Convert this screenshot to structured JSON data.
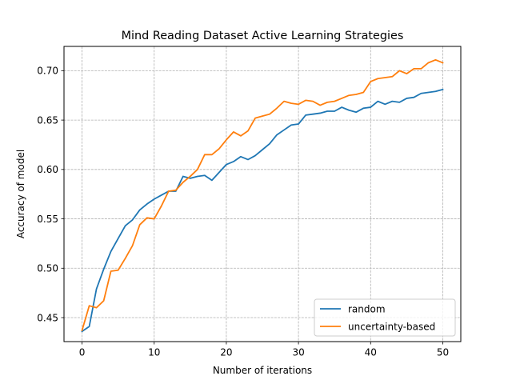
{
  "chart_data": {
    "type": "line",
    "title": "Mind Reading Dataset Active Learning Strategies",
    "xlabel": "Number of iterations",
    "ylabel": "Accuracy of model",
    "xlim": [
      -2.5,
      52.5
    ],
    "ylim": [
      0.4257,
      0.7246
    ],
    "xticks": [
      0,
      10,
      20,
      30,
      40,
      50
    ],
    "xtick_labels": [
      "0",
      "10",
      "20",
      "30",
      "40",
      "50"
    ],
    "yticks": [
      0.45,
      0.5,
      0.55,
      0.6,
      0.65,
      0.7
    ],
    "ytick_labels": [
      "0.45",
      "0.50",
      "0.55",
      "0.60",
      "0.65",
      "0.70"
    ],
    "grid": true,
    "legend_position": "lower-right",
    "x": [
      0,
      1,
      2,
      3,
      4,
      5,
      6,
      7,
      8,
      9,
      10,
      11,
      12,
      13,
      14,
      15,
      16,
      17,
      18,
      19,
      20,
      21,
      22,
      23,
      24,
      25,
      26,
      27,
      28,
      29,
      30,
      31,
      32,
      33,
      34,
      35,
      36,
      37,
      38,
      39,
      40,
      41,
      42,
      43,
      44,
      45,
      46,
      47,
      48,
      49,
      50
    ],
    "series": [
      {
        "name": "random",
        "color": "#1f77b4",
        "values": [
          0.436,
          0.441,
          0.479,
          0.499,
          0.517,
          0.53,
          0.543,
          0.549,
          0.559,
          0.565,
          0.57,
          0.574,
          0.578,
          0.578,
          0.593,
          0.591,
          0.593,
          0.594,
          0.589,
          0.597,
          0.605,
          0.608,
          0.613,
          0.61,
          0.614,
          0.62,
          0.626,
          0.635,
          0.64,
          0.645,
          0.646,
          0.655,
          0.656,
          0.657,
          0.659,
          0.659,
          0.663,
          0.66,
          0.658,
          0.662,
          0.663,
          0.669,
          0.666,
          0.669,
          0.668,
          0.672,
          0.673,
          0.677,
          0.678,
          0.679,
          0.681
        ]
      },
      {
        "name": "uncertainty-based",
        "color": "#ff7f0e",
        "values": [
          0.437,
          0.462,
          0.46,
          0.467,
          0.497,
          0.498,
          0.51,
          0.523,
          0.544,
          0.551,
          0.55,
          0.563,
          0.578,
          0.579,
          0.587,
          0.593,
          0.6,
          0.615,
          0.615,
          0.621,
          0.63,
          0.638,
          0.634,
          0.639,
          0.652,
          0.654,
          0.656,
          0.662,
          0.669,
          0.667,
          0.666,
          0.67,
          0.669,
          0.665,
          0.668,
          0.669,
          0.672,
          0.675,
          0.676,
          0.678,
          0.689,
          0.692,
          0.693,
          0.694,
          0.7,
          0.697,
          0.702,
          0.702,
          0.708,
          0.711,
          0.708
        ]
      }
    ]
  }
}
